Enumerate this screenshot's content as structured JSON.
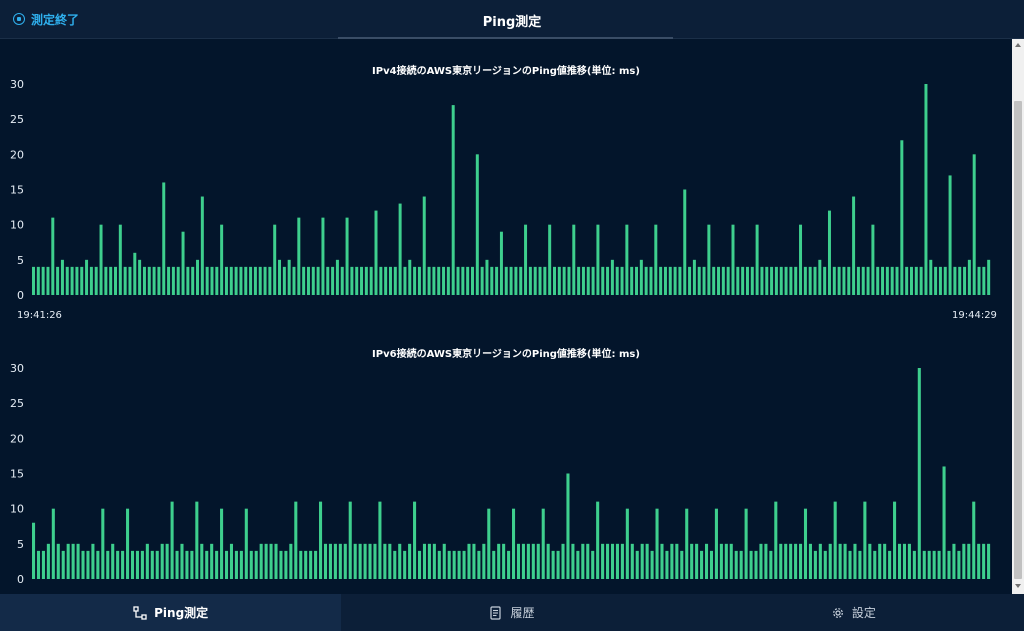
{
  "header": {
    "stop_label": "測定終了",
    "title": "Ping測定"
  },
  "charts": {
    "ipv4": {
      "title": "IPv4接続のAWS東京リージョンのPing値推移(単位: ms)",
      "start_time": "19:41:26",
      "end_time": "19:44:29"
    },
    "ipv6": {
      "title": "IPv6接続のAWS東京リージョンのPing値推移(単位: ms)"
    }
  },
  "chart_data": [
    {
      "type": "bar",
      "title": "IPv4接続のAWS東京リージョンのPing値推移(単位: ms)",
      "ylim": [
        0,
        30
      ],
      "yticks": [
        0,
        5,
        10,
        15,
        20,
        25,
        30
      ],
      "x_start_label": "19:41:26",
      "x_end_label": "19:44:29",
      "values": [
        4,
        4,
        4,
        4,
        11,
        4,
        5,
        4,
        4,
        4,
        4,
        5,
        4,
        4,
        10,
        4,
        4,
        4,
        10,
        4,
        4,
        6,
        5,
        4,
        4,
        4,
        4,
        16,
        4,
        4,
        4,
        9,
        4,
        4,
        5,
        14,
        4,
        4,
        4,
        10,
        4,
        4,
        4,
        4,
        4,
        4,
        4,
        4,
        4,
        4,
        10,
        5,
        4,
        5,
        4,
        11,
        4,
        4,
        4,
        4,
        11,
        4,
        4,
        5,
        4,
        11,
        4,
        4,
        4,
        4,
        4,
        12,
        4,
        4,
        4,
        4,
        13,
        4,
        5,
        4,
        4,
        14,
        4,
        4,
        4,
        4,
        4,
        27,
        4,
        4,
        4,
        4,
        20,
        4,
        5,
        4,
        4,
        9,
        4,
        4,
        4,
        4,
        10,
        4,
        4,
        4,
        4,
        10,
        4,
        4,
        4,
        4,
        10,
        4,
        4,
        4,
        4,
        10,
        4,
        4,
        5,
        4,
        4,
        10,
        4,
        4,
        5,
        4,
        4,
        10,
        4,
        4,
        4,
        4,
        4,
        15,
        4,
        5,
        4,
        4,
        10,
        4,
        4,
        4,
        4,
        10,
        4,
        4,
        4,
        4,
        10,
        4,
        4,
        4,
        4,
        4,
        4,
        4,
        4,
        10,
        4,
        4,
        4,
        5,
        4,
        12,
        4,
        4,
        4,
        4,
        14,
        4,
        4,
        4,
        10,
        4,
        4,
        4,
        4,
        4,
        22,
        4,
        4,
        4,
        4,
        30,
        5,
        4,
        4,
        4,
        17,
        4,
        4,
        4,
        5,
        20,
        4,
        4,
        5
      ]
    },
    {
      "type": "bar",
      "title": "IPv6接続のAWS東京リージョンのPing値推移(単位: ms)",
      "ylim": [
        0,
        30
      ],
      "yticks": [
        0,
        5,
        10,
        15,
        20,
        25,
        30
      ],
      "values": [
        8,
        4,
        4,
        5,
        10,
        5,
        4,
        5,
        5,
        5,
        4,
        4,
        5,
        4,
        10,
        4,
        5,
        4,
        4,
        10,
        4,
        4,
        4,
        5,
        4,
        4,
        5,
        5,
        11,
        4,
        5,
        4,
        4,
        11,
        5,
        4,
        5,
        4,
        10,
        4,
        5,
        4,
        4,
        10,
        4,
        4,
        5,
        5,
        5,
        5,
        4,
        4,
        5,
        11,
        4,
        4,
        4,
        4,
        11,
        5,
        5,
        5,
        5,
        5,
        11,
        5,
        5,
        5,
        5,
        5,
        11,
        5,
        5,
        4,
        5,
        4,
        5,
        11,
        4,
        5,
        5,
        5,
        4,
        5,
        4,
        4,
        4,
        4,
        5,
        5,
        4,
        5,
        10,
        4,
        5,
        5,
        4,
        10,
        5,
        5,
        5,
        5,
        5,
        10,
        5,
        4,
        4,
        5,
        15,
        5,
        4,
        5,
        5,
        4,
        11,
        5,
        5,
        5,
        5,
        5,
        10,
        5,
        4,
        5,
        5,
        4,
        10,
        5,
        4,
        5,
        5,
        4,
        10,
        5,
        5,
        4,
        5,
        4,
        10,
        5,
        5,
        5,
        4,
        4,
        10,
        4,
        4,
        5,
        5,
        4,
        11,
        5,
        5,
        5,
        5,
        5,
        10,
        5,
        4,
        5,
        4,
        5,
        11,
        5,
        5,
        4,
        5,
        4,
        11,
        5,
        4,
        5,
        5,
        4,
        11,
        5,
        5,
        5,
        4,
        30,
        4,
        4,
        4,
        4,
        16,
        4,
        5,
        4,
        5,
        5,
        11,
        5,
        5,
        5
      ]
    }
  ],
  "footer": {
    "tabs": [
      {
        "label": "Ping測定",
        "icon": "ping-icon",
        "active": true
      },
      {
        "label": "履歴",
        "icon": "history-icon",
        "active": false
      },
      {
        "label": "設定",
        "icon": "gear-icon",
        "active": false
      }
    ]
  },
  "colors": {
    "background": "#03152b",
    "bar": "#3ecf8e",
    "accent": "#2fb0ee",
    "header": "#0c1f38"
  }
}
